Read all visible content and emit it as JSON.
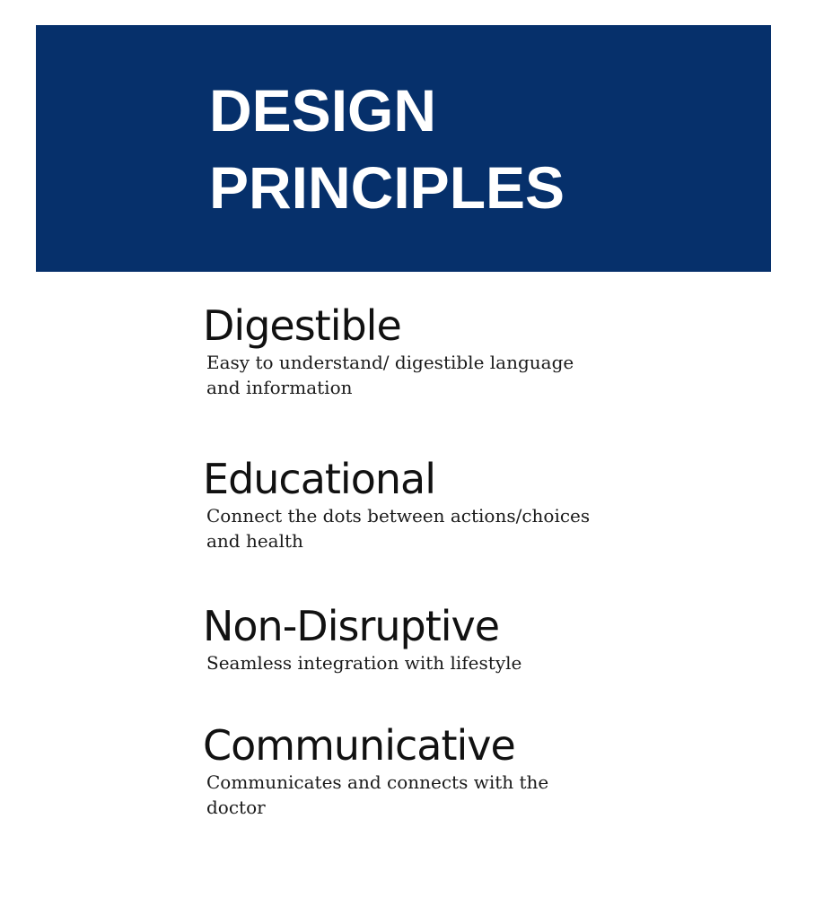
{
  "banner": {
    "title_line1": "DESIGN",
    "title_line2": "PRINCIPLES",
    "background_color": "#06306b"
  },
  "principles": [
    {
      "name": "Digestible",
      "description": "Easy to understand/ digestible language and information"
    },
    {
      "name": "Educational",
      "description": "Connect the dots between actions/choices and health"
    },
    {
      "name": "Non-Disruptive",
      "description": "Seamless integration with lifestyle"
    },
    {
      "name": "Communicative",
      "description": "Communicates and connects with the doctor"
    }
  ]
}
